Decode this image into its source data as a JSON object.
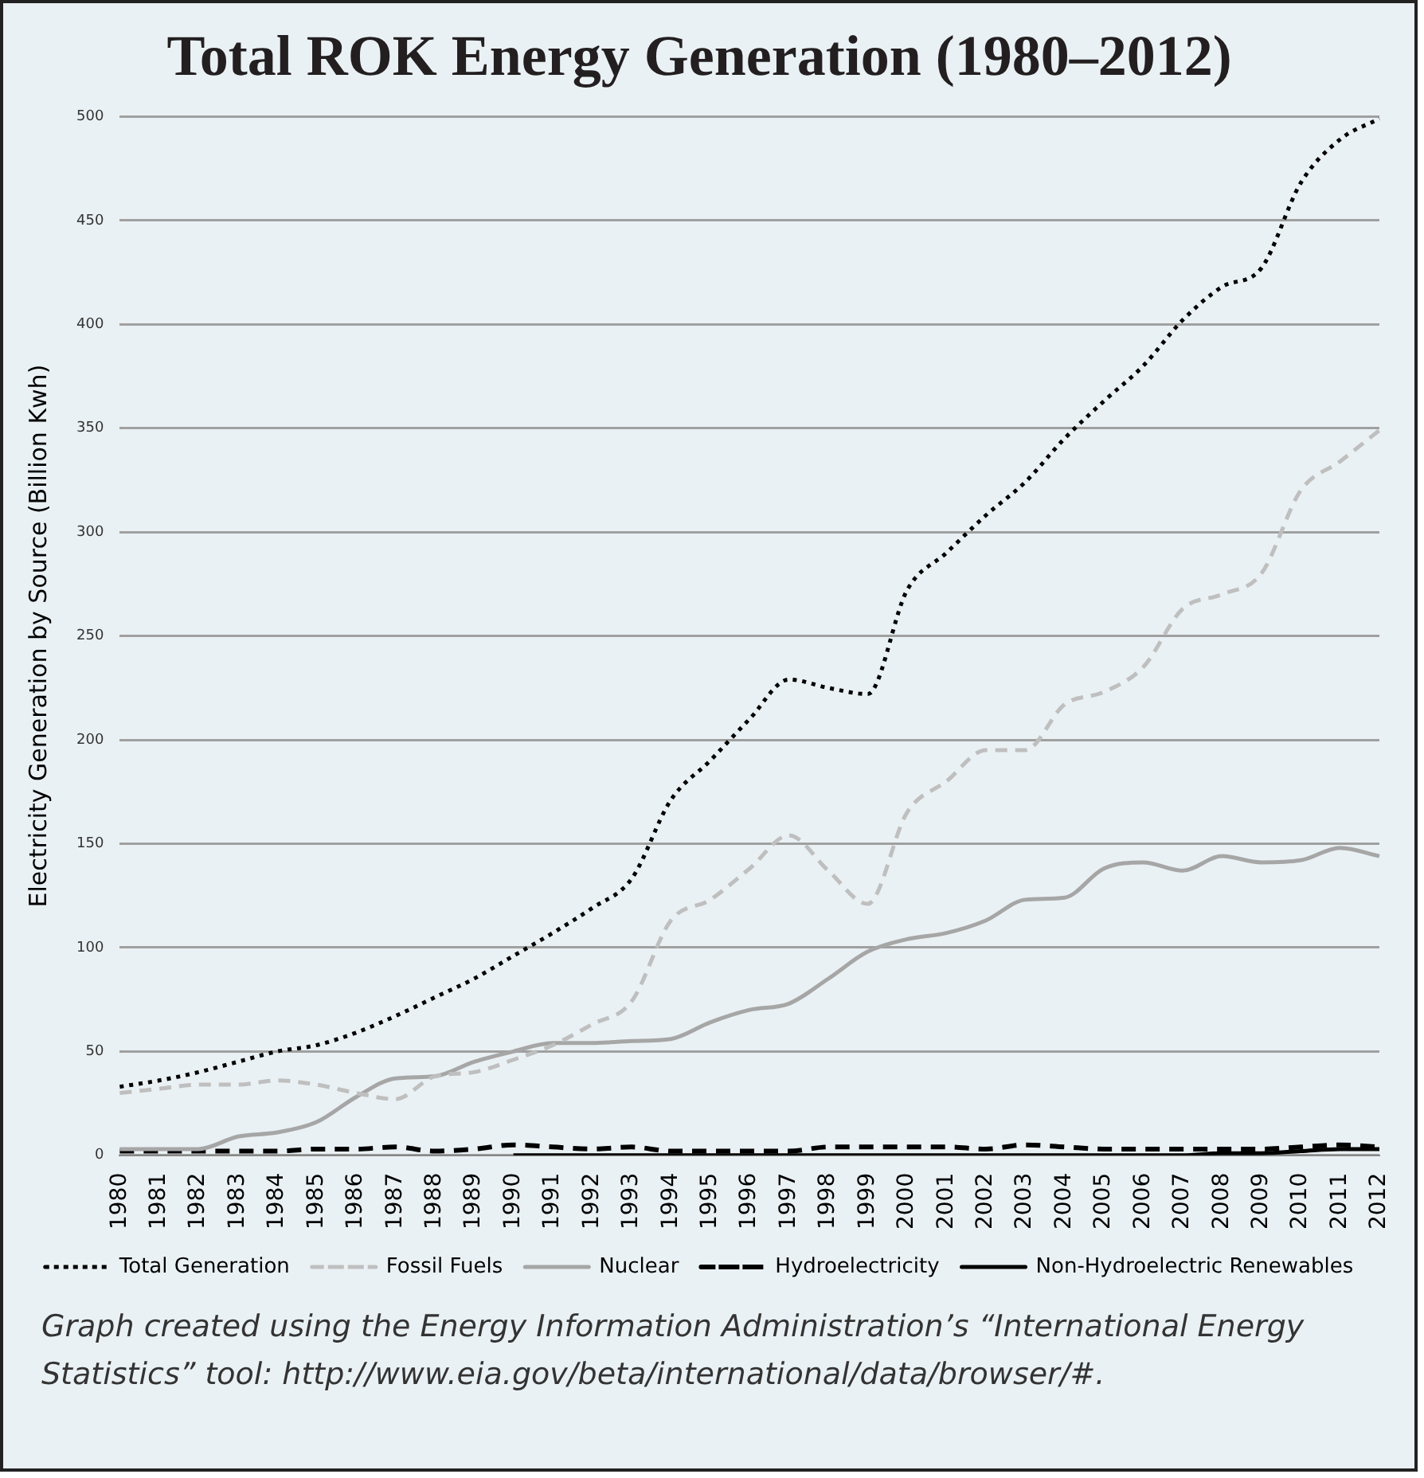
{
  "chart_data": {
    "type": "line",
    "title": "Total ROK Energy Generation (1980–2012)",
    "ylabel": "Electricity Generation by Source (Billion Kwh)",
    "categories": [
      "1980",
      "1981",
      "1982",
      "1983",
      "1984",
      "1985",
      "1986",
      "1987",
      "1988",
      "1989",
      "1990",
      "1991",
      "1992",
      "1993",
      "1994",
      "1995",
      "1996",
      "1997",
      "1998",
      "1999",
      "2000",
      "2001",
      "2002",
      "2003",
      "2004",
      "2005",
      "2006",
      "2007",
      "2008",
      "2009",
      "2010",
      "2011",
      "2012"
    ],
    "series": [
      {
        "name": "Total Generation",
        "color": "#000000",
        "line_style": "dotted",
        "values": [
          33,
          36,
          40,
          45,
          50,
          53,
          59,
          67,
          76,
          85,
          96,
          107,
          119,
          133,
          171,
          190,
          210,
          229,
          225,
          222,
          272,
          290,
          308,
          324,
          345,
          363,
          380,
          402,
          418,
          427,
          468,
          489,
          499
        ]
      },
      {
        "name": "Fossil Fuels",
        "color": "#bfbfbf",
        "line_style": "dashed",
        "values": [
          30,
          32,
          34,
          34,
          36,
          34,
          30,
          27,
          38,
          40,
          46,
          53,
          63,
          74,
          113,
          123,
          138,
          154,
          137,
          121,
          165,
          180,
          195,
          195,
          217,
          223,
          235,
          263,
          270,
          280,
          320,
          334,
          349
        ]
      },
      {
        "name": "Nuclear",
        "color": "#a6a6a6",
        "line_style": "solid",
        "values": [
          3,
          3,
          3,
          9,
          11,
          16,
          28,
          37,
          38,
          45,
          50,
          54,
          54,
          55,
          56,
          64,
          70,
          73,
          85,
          98,
          104,
          107,
          113,
          123,
          124,
          138,
          141,
          137,
          144,
          141,
          142,
          148,
          144
        ]
      },
      {
        "name": "Hydroelectricity",
        "color": "#000000",
        "line_style": "dashed",
        "values": [
          2,
          2,
          2,
          2,
          2,
          3,
          3,
          4,
          2,
          3,
          5,
          4,
          3,
          4,
          2,
          2,
          2,
          2,
          4,
          4,
          4,
          4,
          3,
          5,
          4,
          3,
          3,
          3,
          3,
          3,
          4,
          5,
          4
        ]
      },
      {
        "name": "Non-Hydroelectric Renewables",
        "color": "#000000",
        "line_style": "solid",
        "values": [
          null,
          null,
          null,
          null,
          null,
          null,
          null,
          null,
          null,
          null,
          0,
          0,
          0,
          0,
          0,
          0,
          0,
          0,
          0,
          0,
          0,
          0,
          0,
          0,
          0,
          0,
          0,
          0,
          1,
          1,
          2,
          3,
          3
        ]
      }
    ],
    "ylim": [
      0,
      500
    ],
    "yticks": [
      0,
      50,
      100,
      150,
      200,
      250,
      300,
      350,
      400,
      450,
      500
    ],
    "grid": "y",
    "legend": "bottom",
    "marker": "none",
    "annotations": [
      "Graph created using the Energy Information Administration’s “International Energy Statistics” tool: http://www.eia.gov/beta/international/data/browser/#."
    ]
  }
}
